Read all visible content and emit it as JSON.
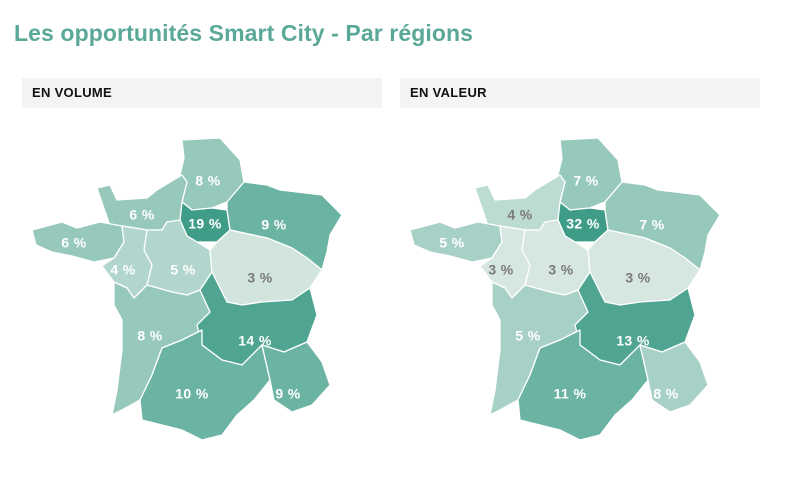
{
  "title": "Les opportunités Smart City - Par régions",
  "panels": [
    {
      "header": "EN VOLUME",
      "regions": {
        "hauts-de-france": {
          "label": "8 %",
          "value": 8,
          "color": "#97c8bc"
        },
        "normandie": {
          "label": "6 %",
          "value": 6,
          "color": "#97c8bc"
        },
        "ile-de-france": {
          "label": "19 %",
          "value": 19,
          "color": "#3e9c88"
        },
        "grand-est": {
          "label": "9 %",
          "value": 9,
          "color": "#6bb3a2"
        },
        "bretagne": {
          "label": "6 %",
          "value": 6,
          "color": "#97c8bc"
        },
        "pays-de-la-loire": {
          "label": "4 %",
          "value": 4,
          "color": "#b2d6cd"
        },
        "centre-val-de-loire": {
          "label": "5 %",
          "value": 5,
          "color": "#b2d6cd"
        },
        "bourgogne-franche-comte": {
          "label": "3 %",
          "value": 3,
          "color": "#d1e4de"
        },
        "nouvelle-aquitaine": {
          "label": "8 %",
          "value": 8,
          "color": "#97c8bc"
        },
        "auvergne-rhone-alpes": {
          "label": "14 %",
          "value": 14,
          "color": "#4fa591"
        },
        "occitanie": {
          "label": "10 %",
          "value": 10,
          "color": "#6bb3a2"
        },
        "paca": {
          "label": "9 %",
          "value": 9,
          "color": "#6bb3a2"
        }
      }
    },
    {
      "header": "EN VALEUR",
      "regions": {
        "hauts-de-france": {
          "label": "7 %",
          "value": 7,
          "color": "#97c8bc"
        },
        "normandie": {
          "label": "4 %",
          "value": 4,
          "color": "#bcdcd3"
        },
        "ile-de-france": {
          "label": "32 %",
          "value": 32,
          "color": "#3e9c88"
        },
        "grand-est": {
          "label": "7 %",
          "value": 7,
          "color": "#97c8bc"
        },
        "bretagne": {
          "label": "5 %",
          "value": 5,
          "color": "#a7d0c6"
        },
        "pays-de-la-loire": {
          "label": "3 %",
          "value": 3,
          "color": "#d6e6e1"
        },
        "centre-val-de-loire": {
          "label": "3 %",
          "value": 3,
          "color": "#d6e6e1"
        },
        "bourgogne-franche-comte": {
          "label": "3 %",
          "value": 3,
          "color": "#d6e6e1"
        },
        "nouvelle-aquitaine": {
          "label": "5 %",
          "value": 5,
          "color": "#a7d0c6"
        },
        "auvergne-rhone-alpes": {
          "label": "13 %",
          "value": 13,
          "color": "#4fa591"
        },
        "occitanie": {
          "label": "11 %",
          "value": 11,
          "color": "#6bb3a2"
        },
        "paca": {
          "label": "8 %",
          "value": 8,
          "color": "#a7d0c6"
        }
      }
    }
  ]
}
